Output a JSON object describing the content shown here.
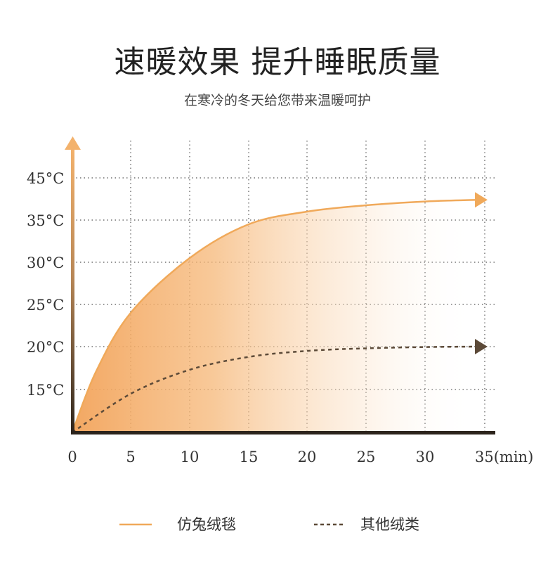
{
  "header": {
    "title": "速暖效果 提升睡眠质量",
    "subtitle": "在寒冷的冬天给您带来温暖呵护"
  },
  "colors": {
    "series1": "#f0a95a",
    "series2": "#5c4a38",
    "highlight_tick": "#f2a35e",
    "axis_dark": "#2c241c"
  },
  "chart_data": {
    "type": "line",
    "title": "",
    "xlabel": "",
    "ylabel": "",
    "x_ticks": [
      "0",
      "5",
      "10",
      "15",
      "20",
      "25",
      "30",
      "35(min)"
    ],
    "y_ticks": [
      "15°C",
      "20°C",
      "25°C",
      "30°C",
      "35°C",
      "45°C"
    ],
    "highlighted_y_tick": "20°C",
    "x_range": [
      0,
      35
    ],
    "grid": true,
    "legend_position": "bottom",
    "series": [
      {
        "name": "仿兔绒毯",
        "style": "solid",
        "fill": "gradient",
        "x": [
          0,
          2,
          5,
          10,
          15,
          20,
          25,
          30,
          35
        ],
        "y": [
          10,
          17,
          24,
          30.5,
          34.5,
          37,
          38.5,
          39.4,
          39.8
        ]
      },
      {
        "name": "其他绒类",
        "style": "dashed",
        "x": [
          0,
          5,
          10,
          15,
          20,
          25,
          30,
          35
        ],
        "y": [
          10,
          14.5,
          17.3,
          18.8,
          19.5,
          19.8,
          19.95,
          20
        ]
      }
    ]
  }
}
